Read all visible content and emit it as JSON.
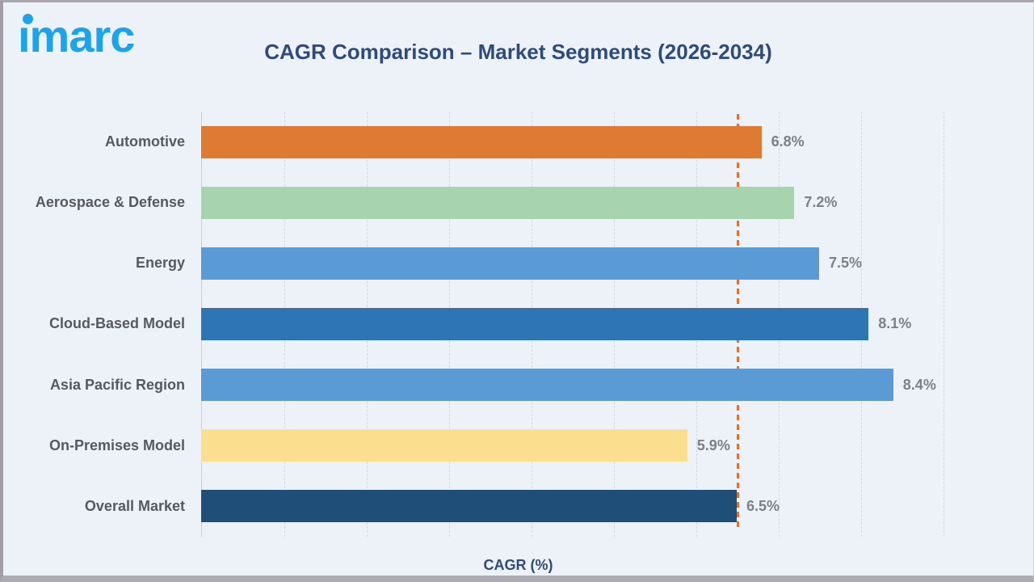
{
  "brand": {
    "logo_text": "imarc",
    "logo_color": "#1BA4EC"
  },
  "title": "CAGR Comparison – Market Segments (2026-2034)",
  "chart_data": {
    "type": "bar",
    "orientation": "horizontal",
    "title": "CAGR Comparison – Market Segments (2026-2034)",
    "xlabel": "CAGR (%)",
    "xlim": [
      0,
      9
    ],
    "grid": true,
    "gridline_interval": 1,
    "legend": "none",
    "categories": [
      "Automotive",
      "Aerospace & Defense",
      "Energy",
      "Cloud-Based Model",
      "Asia Pacific Region",
      "On-Premises Model",
      "Overall Market"
    ],
    "values": [
      6.8,
      7.2,
      7.5,
      8.1,
      8.4,
      5.9,
      6.5
    ],
    "value_labels": [
      "6.8%",
      "7.2%",
      "7.5%",
      "8.1%",
      "8.4%",
      "5.9%",
      "6.5%"
    ],
    "bar_colors": [
      "#DE7A31",
      "#A7D3AE",
      "#5B9BD5",
      "#2E75B6",
      "#5B9BD5",
      "#FBDF8F",
      "#1F4E79"
    ],
    "reference_line": {
      "value": 6.5,
      "style": "dashed",
      "color": "#E2702A"
    }
  },
  "theme": {
    "background": "#EDF1F8",
    "title_color": "#2F4B7C",
    "category_label_color": "#56595D",
    "value_label_color": "#7E8184",
    "gridline_color": "#D4D8E0",
    "axis_line_color": "#C9CED6"
  }
}
